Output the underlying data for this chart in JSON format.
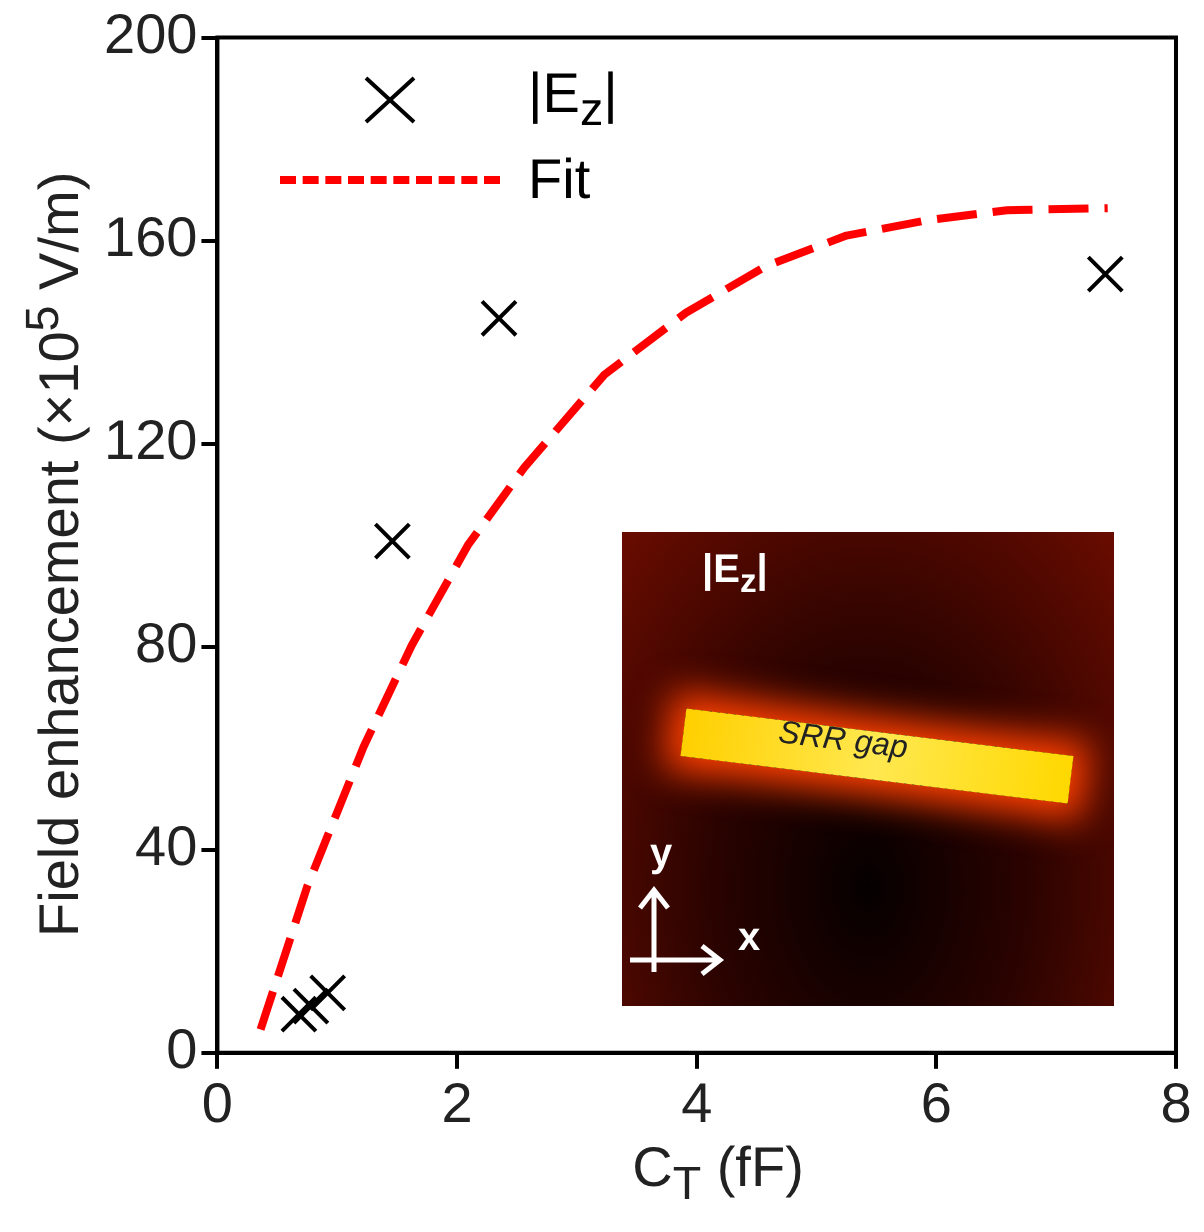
{
  "chart_data": {
    "type": "scatter",
    "xlabel": "C$_{T}$ (fF)",
    "ylabel": "Field enhancement  (×10$^{5}$ V/m)",
    "xlim": [
      0,
      8
    ],
    "xticks": [
      0,
      2,
      4,
      6,
      8
    ],
    "ylim": [
      0,
      200
    ],
    "yticks": [
      0,
      40,
      80,
      120,
      160,
      200
    ],
    "grid": false,
    "legend": "top left",
    "marker": "cross",
    "series": [
      {
        "name": "|E$_{z}$|",
        "color": "#000000",
        "x": [
          0.68,
          0.78,
          0.92,
          1.46,
          2.35,
          7.41
        ],
        "values": [
          7.6,
          9.2,
          11.8,
          100.8,
          144.7,
          153.4
        ]
      },
      {
        "name": "Fit",
        "type": "line",
        "color": "#ff0000",
        "marker": "none",
        "line_style": "dashed",
        "x": [
          0.36,
          0.75,
          1.22,
          1.62,
          2.09,
          2.56,
          3.23,
          3.91,
          4.58,
          5.25,
          5.92,
          6.59,
          7.43
        ],
        "values": [
          4.6,
          32.8,
          60.3,
          80.2,
          100,
          115.3,
          133.6,
          145.8,
          155,
          161,
          164,
          166,
          166.4
        ]
      }
    ],
    "annotations": [
      "|E$_{z}$|",
      "SRR gap",
      "y",
      "x"
    ]
  }
}
